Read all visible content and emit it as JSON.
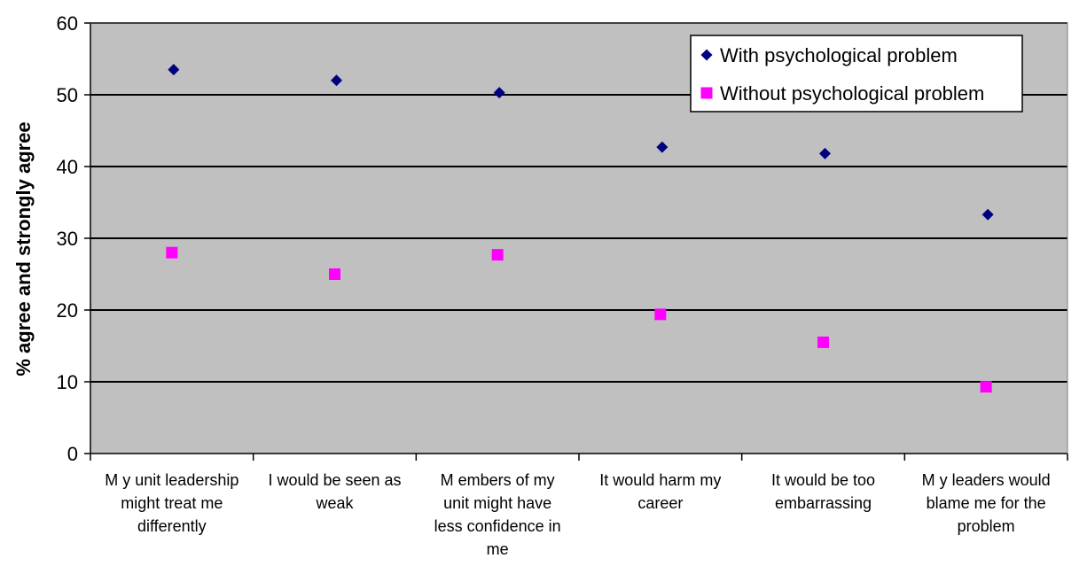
{
  "chart_data": {
    "type": "scatter",
    "title": "",
    "xlabel": "",
    "ylabel": "% agree and strongly agree",
    "ylim": [
      0,
      60
    ],
    "yticks": [
      0,
      10,
      20,
      30,
      40,
      50,
      60
    ],
    "grid": true,
    "legend_position": "top-right",
    "categories": [
      [
        "M y unit leadership",
        "might treat me",
        "differently"
      ],
      [
        "I would be seen as",
        "weak"
      ],
      [
        "M embers of my",
        "unit might have",
        "less confidence in",
        "me"
      ],
      [
        "It would harm my",
        "career"
      ],
      [
        "It would be too",
        "embarrassing"
      ],
      [
        "M y leaders would",
        "blame me for the",
        "problem"
      ]
    ],
    "series": [
      {
        "name": "With psychological problem",
        "marker": "diamond",
        "color": "#000080",
        "values": [
          53.5,
          52.0,
          50.3,
          42.7,
          41.8,
          33.3
        ]
      },
      {
        "name": "Without psychological problem",
        "marker": "square",
        "color": "#ff00ff",
        "values": [
          28.0,
          25.0,
          27.7,
          19.4,
          15.5,
          9.3
        ]
      }
    ],
    "plot_background": "#c0c0c0"
  }
}
